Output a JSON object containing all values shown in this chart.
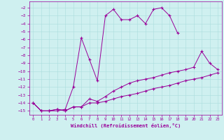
{
  "xlabel": "Windchill (Refroidissement éolien,°C)",
  "background_color": "#cff0f0",
  "line_color": "#990099",
  "xlim": [
    -0.5,
    23.5
  ],
  "ylim": [
    -15.5,
    -1.2
  ],
  "yticks": [
    -2,
    -3,
    -4,
    -5,
    -6,
    -7,
    -8,
    -9,
    -10,
    -11,
    -12,
    -13,
    -14,
    -15
  ],
  "xticks": [
    0,
    1,
    2,
    3,
    4,
    5,
    6,
    7,
    8,
    9,
    10,
    11,
    12,
    13,
    14,
    15,
    16,
    17,
    18,
    19,
    20,
    21,
    22,
    23
  ],
  "series": [
    {
      "x": [
        0,
        1,
        2,
        3,
        4,
        5,
        6,
        7,
        8,
        9,
        10,
        11,
        12,
        13,
        14,
        15,
        16,
        17,
        18
      ],
      "y": [
        -14.0,
        -15.0,
        -15.0,
        -15.0,
        -14.8,
        -12.0,
        -5.8,
        -8.5,
        -11.2,
        -3.0,
        -2.2,
        -3.5,
        -3.5,
        -3.0,
        -4.0,
        -2.2,
        -2.0,
        -3.0,
        -5.2
      ]
    },
    {
      "x": [
        0,
        1,
        2,
        3,
        4,
        5,
        6,
        7,
        8,
        9,
        10,
        11,
        12,
        13,
        14,
        15,
        16,
        17,
        18,
        19,
        20,
        21,
        22,
        23
      ],
      "y": [
        -14.0,
        -15.0,
        -15.0,
        -14.8,
        -15.0,
        -14.5,
        -14.5,
        -13.5,
        -13.8,
        -13.2,
        -12.5,
        -12.0,
        -11.5,
        -11.2,
        -11.0,
        -10.8,
        -10.5,
        -10.2,
        -10.0,
        -9.8,
        -9.5,
        -7.5,
        -9.0,
        -9.8
      ]
    },
    {
      "x": [
        0,
        1,
        2,
        3,
        4,
        5,
        6,
        7,
        8,
        9,
        10,
        11,
        12,
        13,
        14,
        15,
        16,
        17,
        18,
        19,
        20,
        21,
        22,
        23
      ],
      "y": [
        -14.0,
        -15.0,
        -15.0,
        -14.8,
        -15.0,
        -14.5,
        -14.5,
        -14.0,
        -14.0,
        -13.8,
        -13.5,
        -13.2,
        -13.0,
        -12.8,
        -12.5,
        -12.2,
        -12.0,
        -11.8,
        -11.5,
        -11.2,
        -11.0,
        -10.8,
        -10.5,
        -10.2
      ]
    }
  ]
}
